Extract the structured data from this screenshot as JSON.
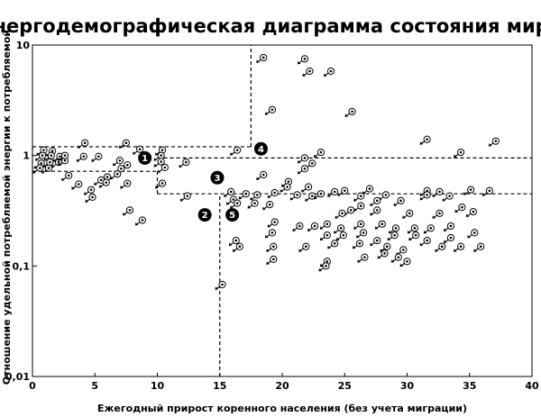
{
  "chart_data": {
    "type": "scatter",
    "title": "Энергодемографическая диаграмма состояния мира",
    "xlabel": "Ежегодный прирост коренного населения (без учета миграции)",
    "ylabel": "Отношение удельной потребляемой энергии к потребляемой",
    "xlim": [
      0,
      40
    ],
    "ylim": [
      0.01,
      10
    ],
    "yscale": "log",
    "grid": false,
    "x_ticks": [
      "0",
      "5",
      "10",
      "15",
      "20",
      "25",
      "30",
      "35",
      "40"
    ],
    "y_ticks": [
      "0,01",
      "0,1",
      "1",
      "10"
    ],
    "zone_lines": {
      "vertical": [
        {
          "x": 15,
          "y_from": 0.01,
          "y_to": 0.45
        },
        {
          "x": 17.5,
          "y_from": 1.2,
          "y_to": 10
        }
      ],
      "horizontal": [
        {
          "y": 1.2,
          "x_from": 0,
          "x_to": 17.5
        },
        {
          "y": 0.72,
          "x_from": 0,
          "x_to": 10
        },
        {
          "y": 0.95,
          "x_from": 10,
          "x_to": 40
        },
        {
          "y": 0.45,
          "x_from": 10,
          "x_to": 40
        }
      ],
      "segments": [
        {
          "x1": 0,
          "y1": 1.2,
          "x2": 0,
          "y2": 0.72
        },
        {
          "x1": 10,
          "y1": 0.72,
          "x2": 10,
          "y2": 0.45
        }
      ]
    },
    "zones": [
      {
        "label": "1",
        "x": 9.0,
        "y": 0.95
      },
      {
        "label": "2",
        "x": 13.8,
        "y": 0.29
      },
      {
        "label": "3",
        "x": 14.8,
        "y": 0.63
      },
      {
        "label": "4",
        "x": 18.3,
        "y": 1.15
      },
      {
        "label": "5",
        "x": 16.0,
        "y": 0.29
      }
    ],
    "points": [
      {
        "x": 0.9,
        "y": 1.12
      },
      {
        "x": 1.6,
        "y": 1.1
      },
      {
        "x": 0.8,
        "y": 1.0
      },
      {
        "x": 1.5,
        "y": 1.0
      },
      {
        "x": 2.2,
        "y": 0.98
      },
      {
        "x": 0.7,
        "y": 0.85
      },
      {
        "x": 1.4,
        "y": 0.87
      },
      {
        "x": 2.1,
        "y": 0.87
      },
      {
        "x": 0.6,
        "y": 0.77
      },
      {
        "x": 1.3,
        "y": 0.77
      },
      {
        "x": 2.6,
        "y": 0.9
      },
      {
        "x": 2.6,
        "y": 1.0
      },
      {
        "x": 4.1,
        "y": 0.98
      },
      {
        "x": 5.3,
        "y": 0.98
      },
      {
        "x": 4.2,
        "y": 1.3
      },
      {
        "x": 7.5,
        "y": 1.3
      },
      {
        "x": 8.6,
        "y": 1.14
      },
      {
        "x": 7.0,
        "y": 0.9
      },
      {
        "x": 7.6,
        "y": 0.82
      },
      {
        "x": 7.1,
        "y": 0.76
      },
      {
        "x": 6.8,
        "y": 0.68
      },
      {
        "x": 6.0,
        "y": 0.64
      },
      {
        "x": 5.5,
        "y": 0.6
      },
      {
        "x": 5.9,
        "y": 0.57
      },
      {
        "x": 7.6,
        "y": 0.56
      },
      {
        "x": 2.9,
        "y": 0.66
      },
      {
        "x": 3.7,
        "y": 0.55
      },
      {
        "x": 4.7,
        "y": 0.49
      },
      {
        "x": 4.8,
        "y": 0.42
      },
      {
        "x": 7.8,
        "y": 0.32
      },
      {
        "x": 8.8,
        "y": 0.26
      },
      {
        "x": 10.4,
        "y": 1.12
      },
      {
        "x": 10.3,
        "y": 1.0
      },
      {
        "x": 10.3,
        "y": 0.88
      },
      {
        "x": 10.6,
        "y": 0.78
      },
      {
        "x": 12.3,
        "y": 0.87
      },
      {
        "x": 10.4,
        "y": 0.56
      },
      {
        "x": 12.4,
        "y": 0.43
      },
      {
        "x": 16.4,
        "y": 1.12
      },
      {
        "x": 18.5,
        "y": 7.7
      },
      {
        "x": 22.2,
        "y": 5.8
      },
      {
        "x": 21.8,
        "y": 7.5
      },
      {
        "x": 23.9,
        "y": 5.8
      },
      {
        "x": 19.2,
        "y": 2.6
      },
      {
        "x": 25.6,
        "y": 2.5
      },
      {
        "x": 31.6,
        "y": 1.4
      },
      {
        "x": 37.1,
        "y": 1.35
      },
      {
        "x": 34.3,
        "y": 1.07
      },
      {
        "x": 23.1,
        "y": 1.07
      },
      {
        "x": 21.8,
        "y": 0.95
      },
      {
        "x": 22.4,
        "y": 0.85
      },
      {
        "x": 21.8,
        "y": 0.76
      },
      {
        "x": 18.5,
        "y": 0.67
      },
      {
        "x": 20.5,
        "y": 0.58
      },
      {
        "x": 20.4,
        "y": 0.52
      },
      {
        "x": 22.1,
        "y": 0.52
      },
      {
        "x": 15.9,
        "y": 0.47
      },
      {
        "x": 17.1,
        "y": 0.45
      },
      {
        "x": 18.0,
        "y": 0.44
      },
      {
        "x": 19.4,
        "y": 0.46
      },
      {
        "x": 21.2,
        "y": 0.44
      },
      {
        "x": 22.4,
        "y": 0.43
      },
      {
        "x": 23.1,
        "y": 0.45
      },
      {
        "x": 24.2,
        "y": 0.47
      },
      {
        "x": 25.0,
        "y": 0.48
      },
      {
        "x": 27.0,
        "y": 0.5
      },
      {
        "x": 28.3,
        "y": 0.44
      },
      {
        "x": 31.6,
        "y": 0.48
      },
      {
        "x": 32.6,
        "y": 0.47
      },
      {
        "x": 35.1,
        "y": 0.49
      },
      {
        "x": 36.6,
        "y": 0.48
      },
      {
        "x": 16.1,
        "y": 0.4
      },
      {
        "x": 17.8,
        "y": 0.37
      },
      {
        "x": 19.0,
        "y": 0.36
      },
      {
        "x": 16.4,
        "y": 0.37
      },
      {
        "x": 26.3,
        "y": 0.43
      },
      {
        "x": 27.6,
        "y": 0.39
      },
      {
        "x": 29.5,
        "y": 0.39
      },
      {
        "x": 31.6,
        "y": 0.44
      },
      {
        "x": 33.4,
        "y": 0.43
      },
      {
        "x": 26.3,
        "y": 0.35
      },
      {
        "x": 25.5,
        "y": 0.32
      },
      {
        "x": 24.8,
        "y": 0.3
      },
      {
        "x": 27.6,
        "y": 0.32
      },
      {
        "x": 30.2,
        "y": 0.3
      },
      {
        "x": 32.6,
        "y": 0.3
      },
      {
        "x": 34.4,
        "y": 0.34
      },
      {
        "x": 35.3,
        "y": 0.31
      },
      {
        "x": 19.4,
        "y": 0.25
      },
      {
        "x": 21.4,
        "y": 0.23
      },
      {
        "x": 22.6,
        "y": 0.23
      },
      {
        "x": 23.6,
        "y": 0.24
      },
      {
        "x": 24.7,
        "y": 0.22
      },
      {
        "x": 26.3,
        "y": 0.24
      },
      {
        "x": 28.0,
        "y": 0.24
      },
      {
        "x": 29.1,
        "y": 0.22
      },
      {
        "x": 30.6,
        "y": 0.22
      },
      {
        "x": 31.9,
        "y": 0.22
      },
      {
        "x": 33.5,
        "y": 0.23
      },
      {
        "x": 35.4,
        "y": 0.2
      },
      {
        "x": 19.2,
        "y": 0.2
      },
      {
        "x": 23.6,
        "y": 0.19
      },
      {
        "x": 24.9,
        "y": 0.19
      },
      {
        "x": 26.5,
        "y": 0.2
      },
      {
        "x": 29.0,
        "y": 0.19
      },
      {
        "x": 30.7,
        "y": 0.19
      },
      {
        "x": 33.5,
        "y": 0.18
      },
      {
        "x": 16.3,
        "y": 0.17
      },
      {
        "x": 16.6,
        "y": 0.15
      },
      {
        "x": 19.3,
        "y": 0.15
      },
      {
        "x": 21.9,
        "y": 0.15
      },
      {
        "x": 24.2,
        "y": 0.16
      },
      {
        "x": 26.2,
        "y": 0.16
      },
      {
        "x": 27.6,
        "y": 0.17
      },
      {
        "x": 28.4,
        "y": 0.15
      },
      {
        "x": 29.7,
        "y": 0.14
      },
      {
        "x": 31.6,
        "y": 0.17
      },
      {
        "x": 32.8,
        "y": 0.15
      },
      {
        "x": 34.3,
        "y": 0.15
      },
      {
        "x": 35.9,
        "y": 0.15
      },
      {
        "x": 19.3,
        "y": 0.115
      },
      {
        "x": 23.6,
        "y": 0.11
      },
      {
        "x": 23.5,
        "y": 0.1
      },
      {
        "x": 26.6,
        "y": 0.12
      },
      {
        "x": 28.2,
        "y": 0.13
      },
      {
        "x": 29.3,
        "y": 0.12
      },
      {
        "x": 30.0,
        "y": 0.11
      },
      {
        "x": 15.2,
        "y": 0.068
      }
    ]
  }
}
